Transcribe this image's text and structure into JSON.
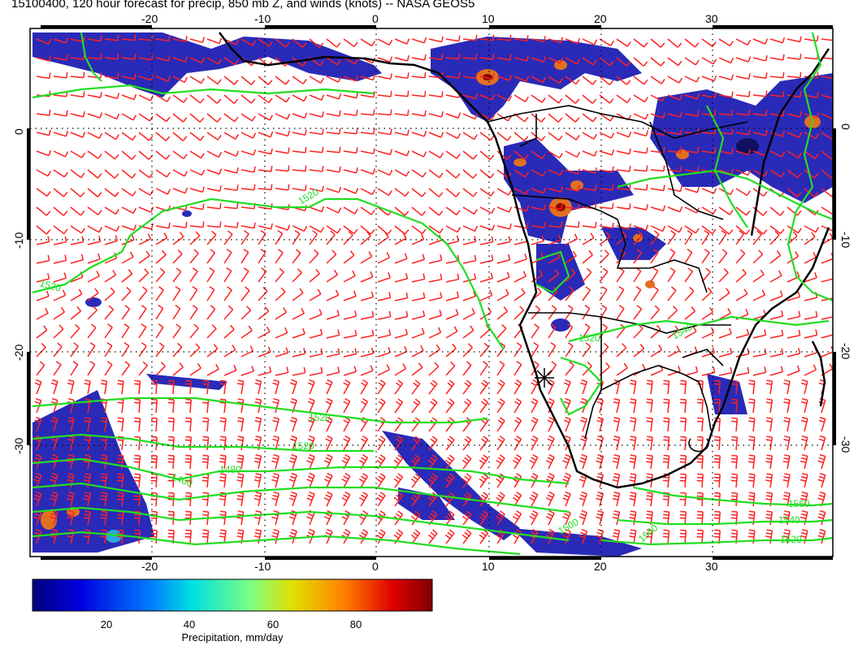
{
  "title": "15100400, 120 hour forecast for precip, 850 mb Z, and winds (knots) -- NASA GEOS5",
  "map": {
    "lon_ticks": [
      "-20",
      "-10",
      "0",
      "10",
      "20",
      "30"
    ],
    "lat_ticks": [
      "0",
      "-10",
      "-20",
      "-30"
    ],
    "contour_labels": [
      "1520",
      "1520",
      "1520",
      "1520",
      "1480",
      "1460",
      "1540",
      "1520",
      "1560",
      "1540",
      "1520",
      "1540",
      "1500"
    ],
    "colors": {
      "contour": "#22dd22",
      "wind_barb": "#ff2020",
      "coastline": "#000000",
      "precip_low": "#1a1aa8",
      "precip_high": "#8b0000"
    }
  },
  "colorbar": {
    "ticks": [
      "20",
      "40",
      "60",
      "80"
    ],
    "label": "Precipitation, mm/day"
  }
}
